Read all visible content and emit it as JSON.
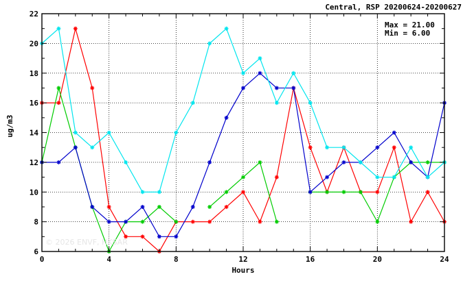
{
  "chart_data": {
    "type": "line",
    "title": "Central, RSP 20200624-20200627",
    "xlabel": "Hours",
    "ylabel": "ug/m3",
    "xlim": [
      0,
      24
    ],
    "ylim": [
      6,
      22
    ],
    "x_ticks": [
      0,
      4,
      8,
      12,
      16,
      20,
      24
    ],
    "y_ticks": [
      6,
      8,
      10,
      12,
      14,
      16,
      18,
      20,
      22
    ],
    "grid": true,
    "stats": {
      "max_label": "Max = 21.00",
      "min_label": "Min =  6.00"
    },
    "watermark": "© 2026  ENVF, HKSAR",
    "series": [
      {
        "color": "#ff0000",
        "x": [
          0,
          1,
          2,
          3,
          4,
          5,
          6,
          7,
          8,
          9,
          10,
          11,
          12,
          13,
          14,
          15,
          16,
          17,
          18,
          19,
          20,
          21,
          22,
          23,
          24
        ],
        "values": [
          16,
          16,
          21,
          17,
          9,
          7,
          7,
          6,
          8,
          8,
          8,
          9,
          10,
          8,
          11,
          17,
          13,
          10,
          13,
          10,
          10,
          13,
          8,
          10,
          8
        ]
      },
      {
        "color": "#00cc00",
        "x": [
          0,
          1,
          2,
          3,
          4,
          5,
          6,
          7,
          8,
          9,
          10,
          11,
          12,
          13,
          14,
          15,
          16,
          17,
          18,
          19,
          20,
          21,
          22,
          23,
          24
        ],
        "values": [
          12,
          17,
          13,
          9,
          6,
          8,
          8,
          9,
          8,
          null,
          9,
          10,
          11,
          12,
          8,
          null,
          10,
          10,
          10,
          10,
          8,
          11,
          12,
          12,
          12
        ]
      },
      {
        "color": "#0000cc",
        "x": [
          0,
          1,
          2,
          3,
          4,
          5,
          6,
          7,
          8,
          9,
          10,
          11,
          12,
          13,
          14,
          15,
          16,
          17,
          18,
          19,
          20,
          21,
          22,
          23,
          24
        ],
        "values": [
          12,
          12,
          13,
          9,
          8,
          8,
          9,
          7,
          7,
          9,
          12,
          15,
          17,
          18,
          17,
          17,
          10,
          11,
          12,
          12,
          13,
          14,
          12,
          11,
          16
        ]
      },
      {
        "color": "#00e5ee",
        "x": [
          0,
          1,
          2,
          3,
          4,
          5,
          6,
          7,
          8,
          9,
          10,
          11,
          12,
          13,
          14,
          15,
          16,
          17,
          18,
          19,
          20,
          21,
          22,
          23,
          24
        ],
        "values": [
          20,
          21,
          14,
          13,
          14,
          12,
          10,
          10,
          14,
          16,
          20,
          21,
          18,
          19,
          16,
          18,
          16,
          13,
          13,
          12,
          11,
          11,
          13,
          11,
          12
        ]
      }
    ]
  }
}
